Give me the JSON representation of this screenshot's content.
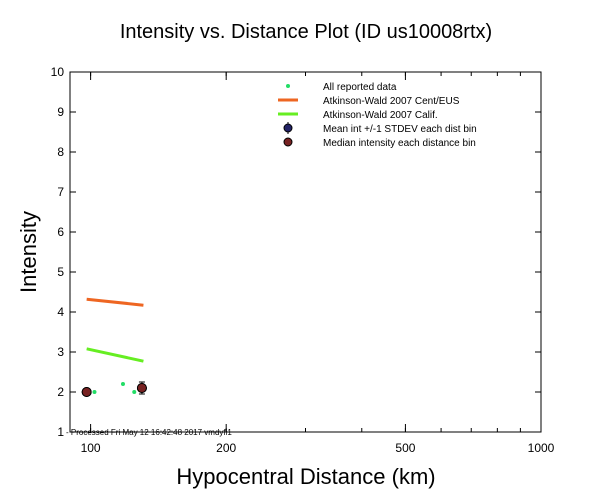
{
  "chart_data": {
    "type": "scatter",
    "title": "Intensity vs. Distance Plot (ID us10008rtx)",
    "xlabel": "Hypocentral Distance (km)",
    "ylabel": "Intensity",
    "x_scale": "log",
    "xlim": [
      90,
      1000
    ],
    "ylim": [
      1,
      10
    ],
    "x_ticks": [
      100,
      200,
      500,
      1000
    ],
    "y_ticks": [
      1,
      2,
      3,
      4,
      5,
      6,
      7,
      8,
      9,
      10
    ],
    "legend_position": "top-right",
    "footer_note": "Processed Fri May 12 16:42:48 2017 vmdyfi1",
    "series": [
      {
        "name": "All reported data",
        "kind": "points",
        "color": "#22dd66",
        "points": [
          [
            98,
            2.0
          ],
          [
            102,
            2.0
          ],
          [
            118,
            2.2
          ],
          [
            125,
            2.0
          ]
        ]
      },
      {
        "name": "Atkinson-Wald 2007 Cent/EUS",
        "kind": "line",
        "color": "#ee6622",
        "points": [
          [
            98,
            4.32
          ],
          [
            131,
            4.17
          ]
        ]
      },
      {
        "name": "Atkinson-Wald 2007 Calif.",
        "kind": "line",
        "color": "#66ee22",
        "points": [
          [
            98,
            3.08
          ],
          [
            131,
            2.77
          ]
        ]
      },
      {
        "name": "Mean int +/-1 STDEV each dist bin",
        "kind": "errorbar",
        "color": "#222266",
        "points": [
          [
            98,
            2.0,
            0.0
          ],
          [
            130,
            2.1,
            0.15
          ]
        ]
      },
      {
        "name": "Median intensity each distance bin",
        "kind": "points",
        "color": "#772222",
        "points": [
          [
            98,
            2.0
          ],
          [
            130,
            2.1
          ]
        ]
      }
    ]
  }
}
